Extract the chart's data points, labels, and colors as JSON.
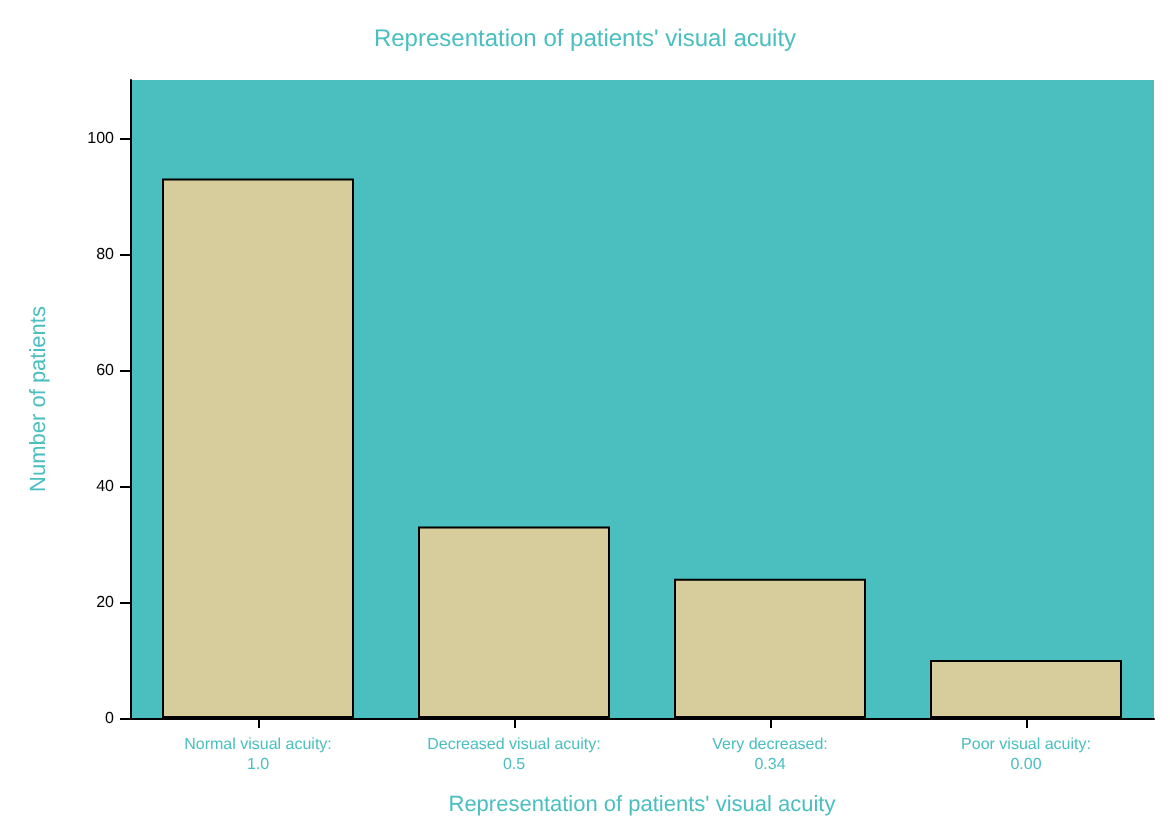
{
  "chart_data": {
    "type": "bar",
    "title": "Representation of patients' visual acuity",
    "xlabel": "Representation of patients' visual acuity",
    "ylabel": "Number of patients",
    "categories": [
      "Normal visual acuity: 1.0",
      "Decreased visual acuity: 0.5",
      "Very decreased: 0.34",
      "Poor visual acuity: 0.00"
    ],
    "values": [
      93,
      33,
      24,
      10
    ],
    "color": "#d6cc9c",
    "ylim": [
      0,
      110
    ],
    "yticks": [
      0,
      20,
      40,
      60,
      80,
      100
    ],
    "grid": false
  }
}
